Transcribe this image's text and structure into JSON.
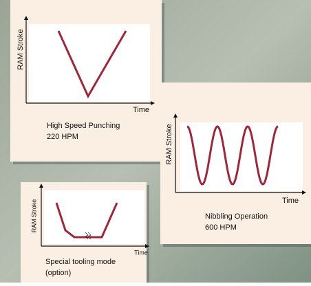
{
  "panels": [
    {
      "y_label": "RAM Stroke",
      "x_label": "Time",
      "caption": [
        "High Speed Punching",
        "220 HPM"
      ]
    },
    {
      "y_label": "RAM Stroke",
      "x_label": "Time",
      "caption": [
        "Nibbling Operation",
        "600 HPM"
      ]
    },
    {
      "y_label": "RAM Stroke",
      "x_label": "Time",
      "caption": [
        "Special tooling mode",
        "(option)"
      ]
    }
  ]
}
